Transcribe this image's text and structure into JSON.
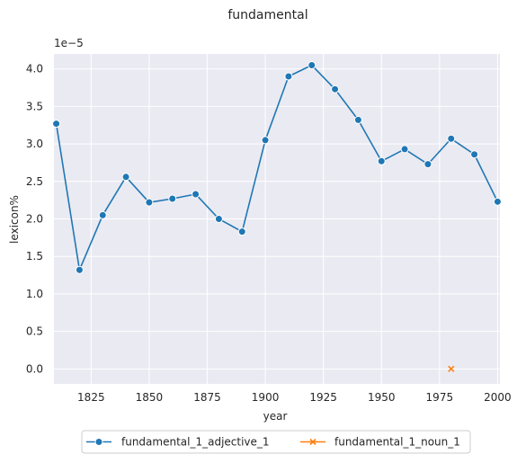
{
  "chart_data": {
    "type": "line",
    "title": "fundamental",
    "xlabel": "year",
    "ylabel": "lexicon%",
    "y_offset_label": "1e−5",
    "xlim": [
      1809,
      2001
    ],
    "ylim": [
      -0.2,
      4.2
    ],
    "xticks": [
      1825,
      1850,
      1875,
      1900,
      1925,
      1950,
      1975,
      2000
    ],
    "yticks": [
      0.0,
      0.5,
      1.0,
      1.5,
      2.0,
      2.5,
      3.0,
      3.5,
      4.0
    ],
    "ytick_labels": [
      "0.0",
      "0.5",
      "1.0",
      "1.5",
      "2.0",
      "2.5",
      "3.0",
      "3.5",
      "4.0"
    ],
    "grid": true,
    "legend_placement": "bottom-center",
    "series": [
      {
        "name": "fundamental_1_adjective_1",
        "color": "#1f77b4",
        "marker": "circle",
        "x": [
          1810,
          1820,
          1830,
          1840,
          1850,
          1860,
          1870,
          1880,
          1890,
          1900,
          1910,
          1920,
          1930,
          1940,
          1950,
          1960,
          1970,
          1980,
          1990,
          2000
        ],
        "y": [
          3.27,
          1.32,
          2.05,
          2.56,
          2.22,
          2.27,
          2.33,
          2.0,
          1.83,
          3.05,
          3.9,
          4.05,
          3.73,
          3.32,
          2.77,
          2.93,
          2.73,
          3.07,
          2.86,
          2.23
        ]
      },
      {
        "name": "fundamental_1_noun_1",
        "color": "#ff7f0e",
        "marker": "x",
        "x": [
          1980
        ],
        "y": [
          0.0
        ]
      }
    ]
  }
}
